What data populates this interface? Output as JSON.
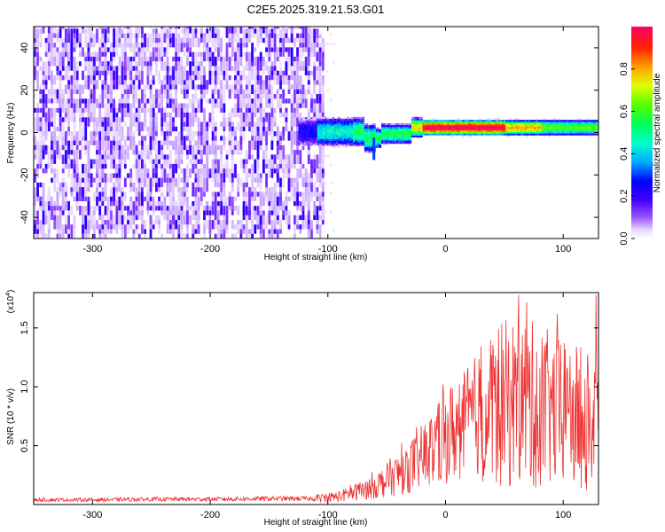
{
  "title": "C2E5.2025.319.21.53.G01",
  "chart_data": [
    {
      "type": "heatmap",
      "xlabel": "Height of straight line (km)",
      "ylabel": "Frequency (Hz)",
      "xlim": [
        -350,
        130
      ],
      "ylim": [
        -50,
        50
      ],
      "xticks": [
        -300,
        -200,
        -100,
        0,
        100
      ],
      "yticks": [
        -40,
        -20,
        0,
        20,
        40
      ],
      "colorbar": {
        "label": "Normalized spectral amplitude",
        "range": [
          0.0,
          1.0
        ],
        "ticks": [
          0.0,
          0.2,
          0.4,
          0.6,
          0.8
        ],
        "tick_labels": [
          "0.0",
          "0.2",
          "0.4",
          "0.6",
          "0.8"
        ]
      },
      "regions": [
        {
          "name": "noise",
          "x": [
            -350,
            -105
          ],
          "y": [
            -50,
            50
          ],
          "amplitude": [
            0.02,
            0.35
          ]
        },
        {
          "name": "signal-band",
          "x": [
            -120,
            130
          ],
          "y": [
            -6,
            6
          ],
          "amplitude": [
            0.3,
            1.0
          ]
        },
        {
          "name": "peak-core",
          "x": [
            -20,
            50
          ],
          "y": [
            0,
            4
          ],
          "amplitude": [
            0.9,
            1.0
          ]
        }
      ]
    },
    {
      "type": "line",
      "xlabel": "Height of straight line (km)",
      "ylabel": "SNR (10 * v/v)",
      "y_multiplier_label": "(x10",
      "y_multiplier_exp": "4",
      "y_multiplier_close": ")",
      "xlim": [
        -350,
        130
      ],
      "ylim": [
        0,
        1.8
      ],
      "xticks": [
        -300,
        -200,
        -100,
        0,
        100
      ],
      "yticks": [
        0.5,
        1.0,
        1.5
      ],
      "ytick_labels": [
        "0.5",
        "1.0",
        "1.5"
      ],
      "series": [
        {
          "name": "SNR",
          "color": "#ee3333",
          "points": [
            [
              -350,
              0.04
            ],
            [
              -300,
              0.04
            ],
            [
              -250,
              0.045
            ],
            [
              -200,
              0.045
            ],
            [
              -150,
              0.05
            ],
            [
              -110,
              0.05
            ],
            [
              -90,
              0.07
            ],
            [
              -70,
              0.12
            ],
            [
              -55,
              0.18
            ],
            [
              -40,
              0.26
            ],
            [
              -25,
              0.36
            ],
            [
              -10,
              0.48
            ],
            [
              0,
              0.58
            ],
            [
              15,
              0.68
            ],
            [
              30,
              0.78
            ],
            [
              50,
              0.85
            ],
            [
              65,
              0.88
            ],
            [
              80,
              0.82
            ],
            [
              100,
              0.78
            ],
            [
              115,
              0.72
            ],
            [
              130,
              0.68
            ]
          ],
          "peak_values": [
            [
              62,
              1.78
            ],
            [
              69,
              1.72
            ],
            [
              95,
              1.62
            ],
            [
              128,
              1.78
            ]
          ]
        }
      ]
    }
  ]
}
